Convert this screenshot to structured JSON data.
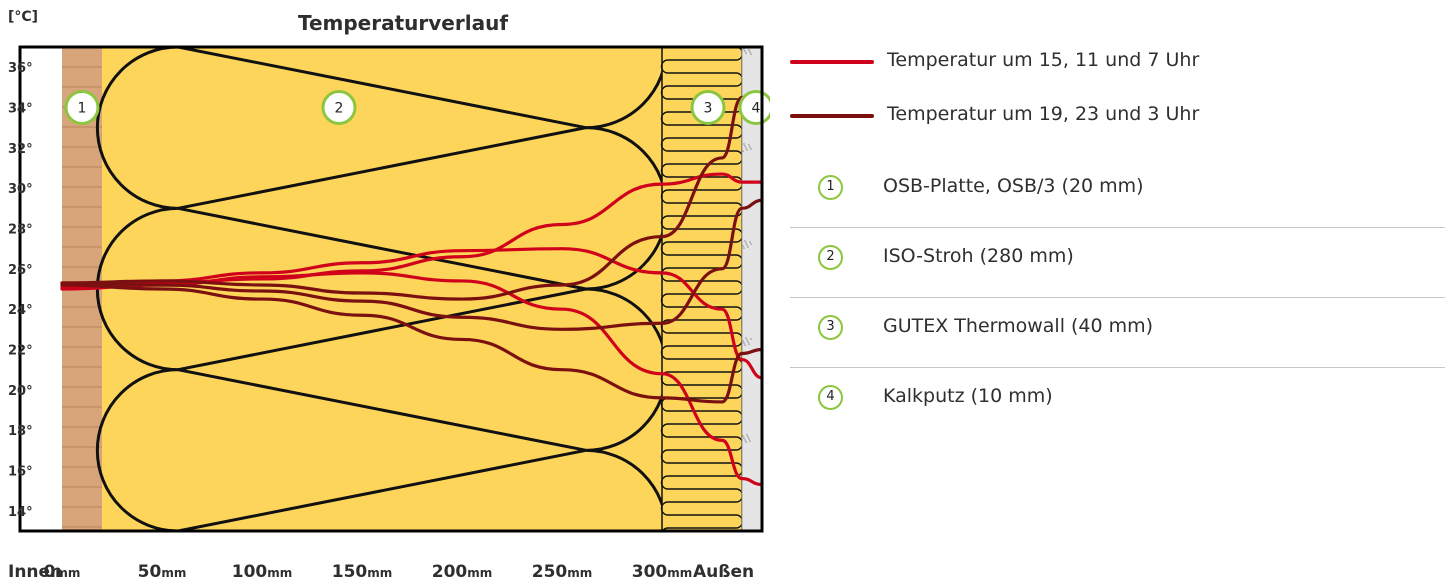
{
  "chart_data": {
    "type": "line",
    "title": "Temperaturverlauf",
    "ylabel": "[°C]",
    "ylim": [
      13,
      37
    ],
    "yticks": [
      "14°",
      "16°",
      "18°",
      "20°",
      "22°",
      "24°",
      "26°",
      "28°",
      "30°",
      "32°",
      "34°",
      "36°"
    ],
    "ytick_values": [
      14,
      16,
      18,
      20,
      22,
      24,
      26,
      28,
      30,
      32,
      34,
      36
    ],
    "xlim": [
      -21,
      350
    ],
    "xticks": [
      "0",
      "50",
      "100",
      "150",
      "200",
      "250",
      "300"
    ],
    "xtick_values": [
      0,
      50,
      100,
      150,
      200,
      250,
      300
    ],
    "xtick_unit": "mm",
    "x_left_label": "Innen",
    "x_right_label": "Außen",
    "layers": [
      {
        "id": "1",
        "name": "OSB-Platte, OSB/3 (20 mm)",
        "x_start": 0,
        "x_end": 20,
        "color": "#d8a57a"
      },
      {
        "id": "2",
        "name": "ISO-Stroh (280 mm)",
        "x_start": 20,
        "x_end": 300,
        "color": "#fdd55b"
      },
      {
        "id": "3",
        "name": "GUTEX Thermowall (40 mm)",
        "x_start": 300,
        "x_end": 340,
        "color": "#fdd55b"
      },
      {
        "id": "4",
        "name": "Kalkputz (10 mm)",
        "x_start": 340,
        "x_end": 350,
        "color": "#e5e5e5"
      }
    ],
    "series": [
      {
        "name": "Temperatur um 15, 11 und 7 Uhr",
        "group": "day",
        "color": "#d0021b",
        "x": [
          0,
          50,
          100,
          150,
          200,
          250,
          300,
          330,
          340,
          350
        ],
        "y": [
          25.1,
          25.3,
          25.5,
          25.9,
          26.6,
          28.2,
          30.2,
          30.7,
          30.3,
          30.3
        ]
      },
      {
        "name": "Temperatur um 15, 11 und 7 Uhr",
        "group": "day",
        "color": "#d0021b",
        "x": [
          0,
          50,
          100,
          150,
          200,
          250,
          300,
          330,
          340,
          350
        ],
        "y": [
          25.2,
          25.4,
          25.8,
          26.3,
          26.9,
          27.0,
          25.8,
          24.0,
          21.5,
          20.6
        ]
      },
      {
        "name": "Temperatur um 15, 11 und 7 Uhr",
        "group": "day",
        "color": "#d0021b",
        "x": [
          0,
          50,
          100,
          150,
          200,
          250,
          300,
          330,
          340,
          350
        ],
        "y": [
          25.0,
          25.2,
          25.6,
          25.8,
          25.4,
          24.0,
          20.8,
          17.5,
          15.6,
          15.3
        ]
      },
      {
        "name": "Temperatur um 19, 23 und 3 Uhr",
        "group": "night",
        "color": "#7b1010",
        "x": [
          0,
          50,
          100,
          150,
          200,
          250,
          300,
          330,
          340,
          350
        ],
        "y": [
          25.3,
          25.4,
          25.2,
          24.8,
          24.5,
          25.2,
          27.6,
          31.5,
          34.5,
          34.7
        ]
      },
      {
        "name": "Temperatur um 19, 23 und 3 Uhr",
        "group": "night",
        "color": "#7b1010",
        "x": [
          0,
          50,
          100,
          150,
          200,
          250,
          300,
          330,
          340,
          350
        ],
        "y": [
          25.3,
          25.2,
          24.9,
          24.4,
          23.6,
          23.0,
          23.3,
          26.0,
          29.0,
          29.4
        ]
      },
      {
        "name": "Temperatur um 19, 23 und 3 Uhr",
        "group": "night",
        "color": "#7b1010",
        "x": [
          0,
          50,
          100,
          150,
          200,
          250,
          300,
          330,
          340,
          350
        ],
        "y": [
          25.2,
          25.0,
          24.5,
          23.7,
          22.5,
          21.0,
          19.6,
          19.4,
          21.8,
          22.0
        ]
      }
    ],
    "grid": false
  },
  "legend": {
    "lines": [
      {
        "label": "Temperatur um 15, 11 und 7 Uhr",
        "color": "#d0021b"
      },
      {
        "label": "Temperatur um 19, 23 und 3 Uhr",
        "color": "#7b1010"
      }
    ],
    "items": [
      {
        "num": "1",
        "label": "OSB-Platte, OSB/3 (20 mm)"
      },
      {
        "num": "2",
        "label": "ISO-Stroh (280 mm)"
      },
      {
        "num": "3",
        "label": "GUTEX Thermowall (40 mm)"
      },
      {
        "num": "4",
        "label": "Kalkputz (10 mm)"
      }
    ]
  },
  "colors": {
    "accent_green": "#8cc63f",
    "frame": "#000000",
    "text": "#2f2f2f"
  }
}
